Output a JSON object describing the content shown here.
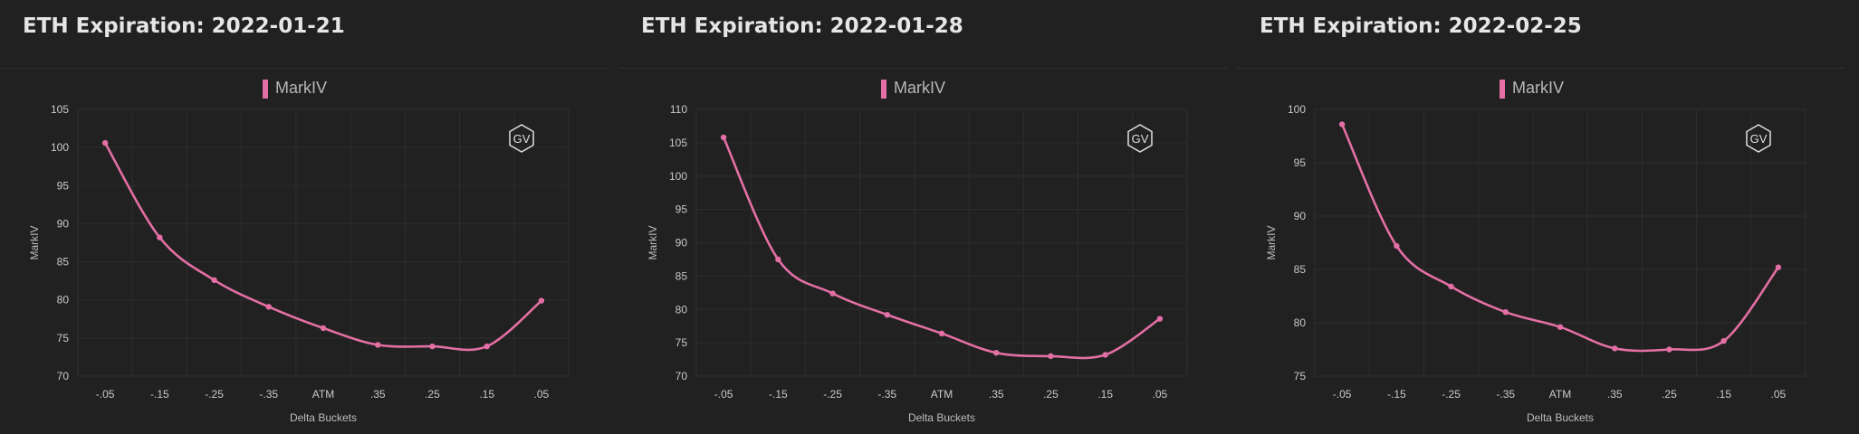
{
  "colors": {
    "background": "#212121",
    "series": "#e46fa5",
    "grid": "#2e2e2e",
    "text": "#e6e6e6"
  },
  "logo_text": "GV",
  "chart_data": [
    {
      "type": "line",
      "title": "ETH Expiration: 2022-01-21",
      "legend": "MarkIV",
      "legend_position": "top-center",
      "xlabel": "Delta Buckets",
      "ylabel": "MarkIV",
      "categories": [
        "-.05",
        "-.15",
        "-.25",
        "-.35",
        "ATM",
        ".35",
        ".25",
        ".15",
        ".05"
      ],
      "yticks": [
        70,
        75,
        80,
        85,
        90,
        95,
        100,
        105
      ],
      "ylim": [
        70,
        105
      ],
      "grid": true,
      "series": [
        {
          "name": "MarkIV",
          "values": [
            100.6,
            88.2,
            82.6,
            79.1,
            76.3,
            74.1,
            73.9,
            73.9,
            79.9
          ]
        }
      ]
    },
    {
      "type": "line",
      "title": "ETH Expiration: 2022-01-28",
      "legend": "MarkIV",
      "legend_position": "top-center",
      "xlabel": "Delta Buckets",
      "ylabel": "MarkIV",
      "categories": [
        "-.05",
        "-.15",
        "-.25",
        "-.35",
        "ATM",
        ".35",
        ".25",
        ".15",
        ".05"
      ],
      "yticks": [
        70,
        75,
        80,
        85,
        90,
        95,
        100,
        105,
        110
      ],
      "ylim": [
        70,
        110
      ],
      "grid": true,
      "series": [
        {
          "name": "MarkIV",
          "values": [
            105.8,
            87.5,
            82.4,
            79.2,
            76.4,
            73.5,
            73.0,
            73.2,
            78.6
          ]
        }
      ]
    },
    {
      "type": "line",
      "title": "ETH Expiration: 2022-02-25",
      "legend": "MarkIV",
      "legend_position": "top-center",
      "xlabel": "Delta Buckets",
      "ylabel": "MarkIV",
      "categories": [
        "-.05",
        "-.15",
        "-.25",
        "-.35",
        "ATM",
        ".35",
        ".25",
        ".15",
        ".05"
      ],
      "yticks": [
        75,
        80,
        85,
        90,
        95,
        100
      ],
      "ylim": [
        75,
        100
      ],
      "grid": true,
      "series": [
        {
          "name": "MarkIV",
          "values": [
            98.6,
            87.2,
            83.4,
            81.0,
            79.6,
            77.6,
            77.5,
            78.3,
            85.2
          ]
        }
      ]
    }
  ]
}
